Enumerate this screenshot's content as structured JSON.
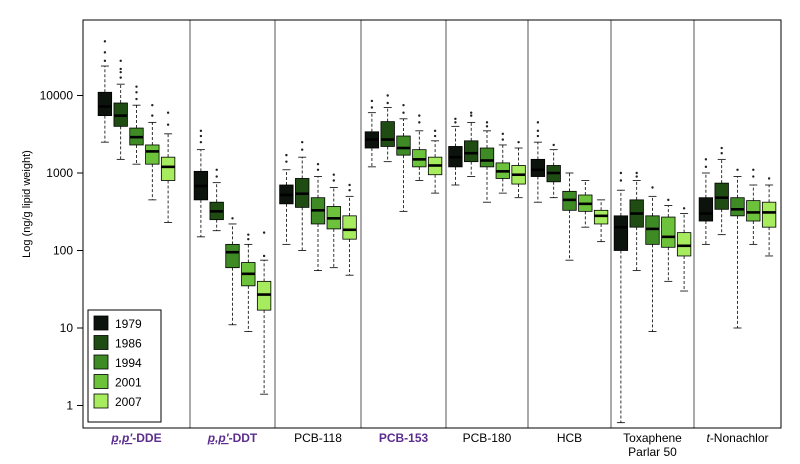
{
  "chart_data": {
    "type": "box",
    "ylabel": "Log (ng/g lipid weight)",
    "yscale": "log",
    "ylim": [
      0.5,
      70000
    ],
    "yticks": [
      1,
      10,
      100,
      1000,
      10000
    ],
    "ytick_labels": [
      "1",
      "10",
      "100",
      "1000",
      "10000"
    ],
    "legend": {
      "placement": "bottom-left",
      "entries": [
        "1979",
        "1986",
        "1994",
        "2001",
        "2007"
      ],
      "colors": [
        "#0c120c",
        "#1f4c12",
        "#3e8a25",
        "#6cc23a",
        "#a6ec5e"
      ]
    },
    "groups": [
      {
        "label": "p,p'-DDE",
        "label_prefix": "p,p'",
        "label_suffix": "-DDE",
        "label_style": "purple-italic-prefix",
        "boxes": [
          {
            "year": "1979",
            "min": 2500,
            "q1": 5500,
            "median": 7200,
            "q3": 11000,
            "max": 24000,
            "outliers": [
              28000,
              36000,
              50000
            ]
          },
          {
            "year": "1986",
            "min": 1500,
            "q1": 4000,
            "median": 5500,
            "q3": 8000,
            "max": 14000,
            "outliers": [
              17000,
              20000,
              22000,
              28000
            ]
          },
          {
            "year": "1994",
            "min": 1300,
            "q1": 2300,
            "median": 2900,
            "q3": 3800,
            "max": 7500,
            "outliers": [
              9000,
              11000,
              13000
            ]
          },
          {
            "year": "2001",
            "min": 450,
            "q1": 1300,
            "median": 1900,
            "q3": 2300,
            "max": 4500,
            "outliers": [
              5500,
              7500
            ]
          },
          {
            "year": "2007",
            "min": 230,
            "q1": 800,
            "median": 1200,
            "q3": 1600,
            "max": 3200,
            "outliers": [
              4200,
              6000
            ]
          }
        ]
      },
      {
        "label": "p,p'-DDT",
        "label_prefix": "p,p'",
        "label_suffix": "-DDT",
        "label_style": "purple-italic-prefix",
        "boxes": [
          {
            "year": "1979",
            "min": 150,
            "q1": 450,
            "median": 680,
            "q3": 1050,
            "max": 2000,
            "outliers": [
              2500,
              3000,
              3500
            ]
          },
          {
            "year": "1986",
            "min": 180,
            "q1": 250,
            "median": 320,
            "q3": 420,
            "max": 750,
            "outliers": [
              900,
              1100
            ]
          },
          {
            "year": "1994",
            "min": 11,
            "q1": 60,
            "median": 95,
            "q3": 120,
            "max": 220,
            "outliers": [
              260
            ]
          },
          {
            "year": "2001",
            "min": 9,
            "q1": 35,
            "median": 50,
            "q3": 70,
            "max": 120,
            "outliers": [
              140,
              160
            ]
          },
          {
            "year": "2007",
            "min": 1.4,
            "q1": 17,
            "median": 27,
            "q3": 40,
            "max": 75,
            "outliers": [
              85,
              170
            ]
          }
        ]
      },
      {
        "label": "PCB-118",
        "label_style": "plain",
        "boxes": [
          {
            "year": "1979",
            "min": 120,
            "q1": 400,
            "median": 520,
            "q3": 700,
            "max": 1100,
            "outliers": [
              1400,
              1700
            ]
          },
          {
            "year": "1986",
            "min": 100,
            "q1": 360,
            "median": 540,
            "q3": 850,
            "max": 1600,
            "outliers": [
              2000,
              2500
            ]
          },
          {
            "year": "1994",
            "min": 55,
            "q1": 220,
            "median": 330,
            "q3": 480,
            "max": 900,
            "outliers": [
              1100,
              1300
            ]
          },
          {
            "year": "2001",
            "min": 60,
            "q1": 190,
            "median": 260,
            "q3": 370,
            "max": 650,
            "outliers": [
              800,
              950
            ]
          },
          {
            "year": "2007",
            "min": 48,
            "q1": 140,
            "median": 185,
            "q3": 280,
            "max": 500,
            "outliers": [
              600,
              700
            ]
          }
        ]
      },
      {
        "label": "PCB-153",
        "label_style": "purple-bold",
        "boxes": [
          {
            "year": "1979",
            "min": 1200,
            "q1": 2100,
            "median": 2700,
            "q3": 3400,
            "max": 6000,
            "outliers": [
              7000,
              8500
            ]
          },
          {
            "year": "1986",
            "min": 1400,
            "q1": 2200,
            "median": 2700,
            "q3": 4600,
            "max": 7000,
            "outliers": [
              8000,
              10000
            ]
          },
          {
            "year": "1994",
            "min": 320,
            "q1": 1700,
            "median": 2100,
            "q3": 3000,
            "max": 5000,
            "outliers": [
              6000,
              7500
            ]
          },
          {
            "year": "2001",
            "min": 800,
            "q1": 1200,
            "median": 1500,
            "q3": 2000,
            "max": 3500,
            "outliers": [
              4500,
              5500
            ]
          },
          {
            "year": "2007",
            "min": 550,
            "q1": 950,
            "median": 1250,
            "q3": 1600,
            "max": 2600,
            "outliers": [
              3000,
              3500
            ]
          }
        ]
      },
      {
        "label": "PCB-180",
        "label_style": "plain",
        "boxes": [
          {
            "year": "1979",
            "min": 700,
            "q1": 1200,
            "median": 1600,
            "q3": 2200,
            "max": 4000,
            "outliers": [
              4500,
              5000
            ]
          },
          {
            "year": "1986",
            "min": 900,
            "q1": 1400,
            "median": 1800,
            "q3": 2600,
            "max": 4500,
            "outliers": [
              5500,
              6000
            ]
          },
          {
            "year": "1994",
            "min": 420,
            "q1": 1200,
            "median": 1450,
            "q3": 2100,
            "max": 3500,
            "outliers": [
              4000,
              4500
            ]
          },
          {
            "year": "2001",
            "min": 550,
            "q1": 850,
            "median": 1050,
            "q3": 1350,
            "max": 2300,
            "outliers": [
              2700,
              3200
            ]
          },
          {
            "year": "2007",
            "min": 480,
            "q1": 720,
            "median": 950,
            "q3": 1250,
            "max": 2100,
            "outliers": [
              2500
            ]
          }
        ]
      },
      {
        "label": "HCB",
        "label_style": "plain",
        "boxes": [
          {
            "year": "1979",
            "min": 420,
            "q1": 900,
            "median": 1100,
            "q3": 1500,
            "max": 2500,
            "outliers": [
              3000,
              3500,
              4500
            ]
          },
          {
            "year": "1986",
            "min": 480,
            "q1": 770,
            "median": 1000,
            "q3": 1250,
            "max": 2000,
            "outliers": [
              2300
            ]
          },
          {
            "year": "1994",
            "min": 75,
            "q1": 330,
            "median": 450,
            "q3": 580,
            "max": 1000,
            "outliers": []
          },
          {
            "year": "2001",
            "min": 200,
            "q1": 320,
            "median": 400,
            "q3": 520,
            "max": 800,
            "outliers": []
          },
          {
            "year": "2007",
            "min": 130,
            "q1": 220,
            "median": 280,
            "q3": 330,
            "max": 450,
            "outliers": []
          }
        ]
      },
      {
        "label": "Toxaphene Parlar 50",
        "label_line1": "Toxaphene",
        "label_line2": "Parlar 50",
        "label_style": "plain",
        "boxes": [
          {
            "year": "1979",
            "min": 0.6,
            "q1": 100,
            "median": 200,
            "q3": 280,
            "max": 600,
            "outliers": [
              800,
              1000
            ]
          },
          {
            "year": "1986",
            "min": 55,
            "q1": 200,
            "median": 300,
            "q3": 450,
            "max": 800,
            "outliers": [
              900,
              1000
            ]
          },
          {
            "year": "1994",
            "min": 9,
            "q1": 120,
            "median": 190,
            "q3": 280,
            "max": 500,
            "outliers": [
              650
            ]
          },
          {
            "year": "2001",
            "min": 40,
            "q1": 110,
            "median": 150,
            "q3": 270,
            "max": 380,
            "outliers": [
              450
            ]
          },
          {
            "year": "2007",
            "min": 30,
            "q1": 85,
            "median": 115,
            "q3": 170,
            "max": 300,
            "outliers": [
              350
            ]
          }
        ]
      },
      {
        "label": "t-Nonachlor",
        "label_prefix": "t",
        "label_suffix": "-Nonachlor",
        "label_style": "italic-prefix",
        "boxes": [
          {
            "year": "1979",
            "min": 120,
            "q1": 240,
            "median": 300,
            "q3": 480,
            "max": 1000,
            "outliers": [
              1200,
              1500
            ]
          },
          {
            "year": "1986",
            "min": 160,
            "q1": 340,
            "median": 480,
            "q3": 740,
            "max": 1500,
            "outliers": [
              1800,
              2100
            ]
          },
          {
            "year": "1994",
            "min": 10,
            "q1": 280,
            "median": 340,
            "q3": 480,
            "max": 900,
            "outliers": [
              1100
            ]
          },
          {
            "year": "2001",
            "min": 120,
            "q1": 240,
            "median": 310,
            "q3": 440,
            "max": 700,
            "outliers": [
              900,
              1100
            ]
          },
          {
            "year": "2007",
            "min": 85,
            "q1": 200,
            "median": 310,
            "q3": 420,
            "max": 700,
            "outliers": [
              850
            ]
          }
        ]
      }
    ]
  }
}
